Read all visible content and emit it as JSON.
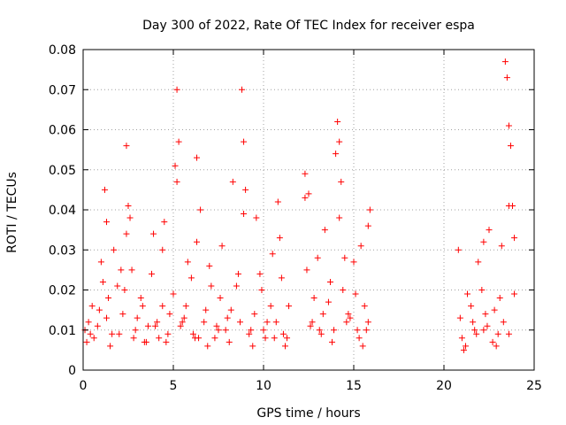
{
  "chart_data": {
    "type": "scatter",
    "title": "Day 300 of 2022, Rate Of TEC Index for receiver espa",
    "xlabel": "GPS time / hours",
    "ylabel": "ROTI / TECUs",
    "xlim": [
      0,
      25
    ],
    "ylim": [
      0,
      0.08
    ],
    "x_ticks": [
      "0",
      "5",
      "10",
      "15",
      "20",
      "25"
    ],
    "y_ticks": [
      "0",
      "0.01",
      "0.02",
      "0.03",
      "0.04",
      "0.05",
      "0.06",
      "0.07",
      "0.08"
    ],
    "grid": true,
    "legend": "none",
    "marker": "plus",
    "color": "#ff0000",
    "series": [
      {
        "x": [
          0.1,
          0.3,
          0.6,
          0.9,
          1.1,
          1.2,
          1.4,
          1.7,
          2.0,
          2.3,
          2.4,
          2.5,
          2.7,
          3.0,
          3.3,
          3.6,
          3.9,
          4.2,
          4.5,
          4.8,
          5.0,
          5.1,
          5.2,
          5.3,
          5.5,
          5.8,
          6.1,
          6.3,
          6.5,
          6.8,
          7.1,
          7.4,
          7.7,
          8.0,
          8.3,
          8.6,
          8.8,
          8.9,
          9.0,
          9.3,
          9.6,
          9.9,
          10.2,
          10.5,
          10.8,
          11.1,
          11.4,
          12.3,
          12.5,
          12.8,
          13.1,
          13.4,
          13.7,
          14.0,
          14.1,
          14.2,
          14.3,
          14.5,
          14.8,
          15.1,
          15.4,
          15.7,
          15.9,
          20.8,
          21.0,
          21.3,
          21.6,
          21.9,
          22.2,
          22.5,
          22.8,
          23.0,
          23.2,
          23.4,
          23.5,
          23.6,
          23.7,
          23.8,
          23.9,
          0.2,
          0.5,
          0.8,
          1.0,
          1.3,
          1.6,
          1.9,
          2.2,
          2.6,
          2.9,
          3.2,
          3.5,
          3.8,
          4.1,
          4.4,
          4.7,
          5.4,
          5.7,
          6.0,
          6.4,
          6.7,
          7.0,
          7.3,
          7.6,
          7.9,
          8.2,
          8.5,
          9.2,
          9.5,
          9.8,
          10.1,
          10.4,
          10.7,
          11.0,
          11.3,
          12.4,
          12.7,
          13.0,
          13.3,
          13.6,
          13.9,
          14.4,
          14.7,
          15.0,
          15.3,
          15.6,
          15.8,
          20.9,
          21.2,
          21.5,
          21.8,
          22.1,
          22.4,
          22.7,
          23.1,
          23.3,
          23.9,
          0.4,
          1.5,
          2.1,
          2.8,
          3.4,
          4.0,
          4.6,
          5.6,
          6.2,
          6.9,
          7.5,
          8.1,
          8.7,
          9.4,
          10.0,
          10.6,
          11.2,
          12.6,
          13.2,
          13.8,
          14.6,
          15.2,
          15.5,
          21.1,
          21.7,
          22.3,
          22.9,
          23.6,
          1.3,
          2.4,
          4.4,
          5.2,
          6.3,
          8.9,
          10.9,
          12.3,
          14.2,
          15.8,
          22.2,
          23.6
        ],
        "y": [
          0.01,
          0.012,
          0.008,
          0.015,
          0.022,
          0.045,
          0.018,
          0.03,
          0.009,
          0.02,
          0.056,
          0.041,
          0.025,
          0.013,
          0.016,
          0.011,
          0.034,
          0.008,
          0.037,
          0.014,
          0.019,
          0.051,
          0.07,
          0.057,
          0.012,
          0.027,
          0.009,
          0.053,
          0.04,
          0.015,
          0.021,
          0.011,
          0.031,
          0.013,
          0.047,
          0.024,
          0.07,
          0.057,
          0.045,
          0.01,
          0.038,
          0.02,
          0.012,
          0.029,
          0.042,
          0.009,
          0.016,
          0.049,
          0.044,
          0.018,
          0.01,
          0.035,
          0.022,
          0.054,
          0.062,
          0.057,
          0.047,
          0.028,
          0.013,
          0.019,
          0.031,
          0.01,
          0.04,
          0.03,
          0.008,
          0.019,
          0.012,
          0.027,
          0.01,
          0.035,
          0.015,
          0.009,
          0.031,
          0.077,
          0.073,
          0.061,
          0.056,
          0.041,
          0.033,
          0.007,
          0.016,
          0.011,
          0.027,
          0.013,
          0.009,
          0.021,
          0.014,
          0.038,
          0.01,
          0.018,
          0.007,
          0.024,
          0.012,
          0.016,
          0.009,
          0.011,
          0.016,
          0.023,
          0.008,
          0.012,
          0.026,
          0.008,
          0.018,
          0.01,
          0.015,
          0.021,
          0.009,
          0.014,
          0.024,
          0.008,
          0.016,
          0.012,
          0.023,
          0.008,
          0.025,
          0.012,
          0.028,
          0.014,
          0.017,
          0.01,
          0.02,
          0.014,
          0.027,
          0.008,
          0.016,
          0.012,
          0.013,
          0.006,
          0.016,
          0.009,
          0.02,
          0.011,
          0.007,
          0.018,
          0.012,
          0.019,
          0.009,
          0.006,
          0.025,
          0.008,
          0.007,
          0.011,
          0.007,
          0.013,
          0.008,
          0.006,
          0.01,
          0.007,
          0.012,
          0.006,
          0.01,
          0.008,
          0.006,
          0.011,
          0.009,
          0.007,
          0.012,
          0.01,
          0.006,
          0.005,
          0.01,
          0.014,
          0.006,
          0.009,
          0.037,
          0.034,
          0.03,
          0.047,
          0.032,
          0.039,
          0.033,
          0.043,
          0.038,
          0.036,
          0.032,
          0.041
        ]
      }
    ]
  }
}
